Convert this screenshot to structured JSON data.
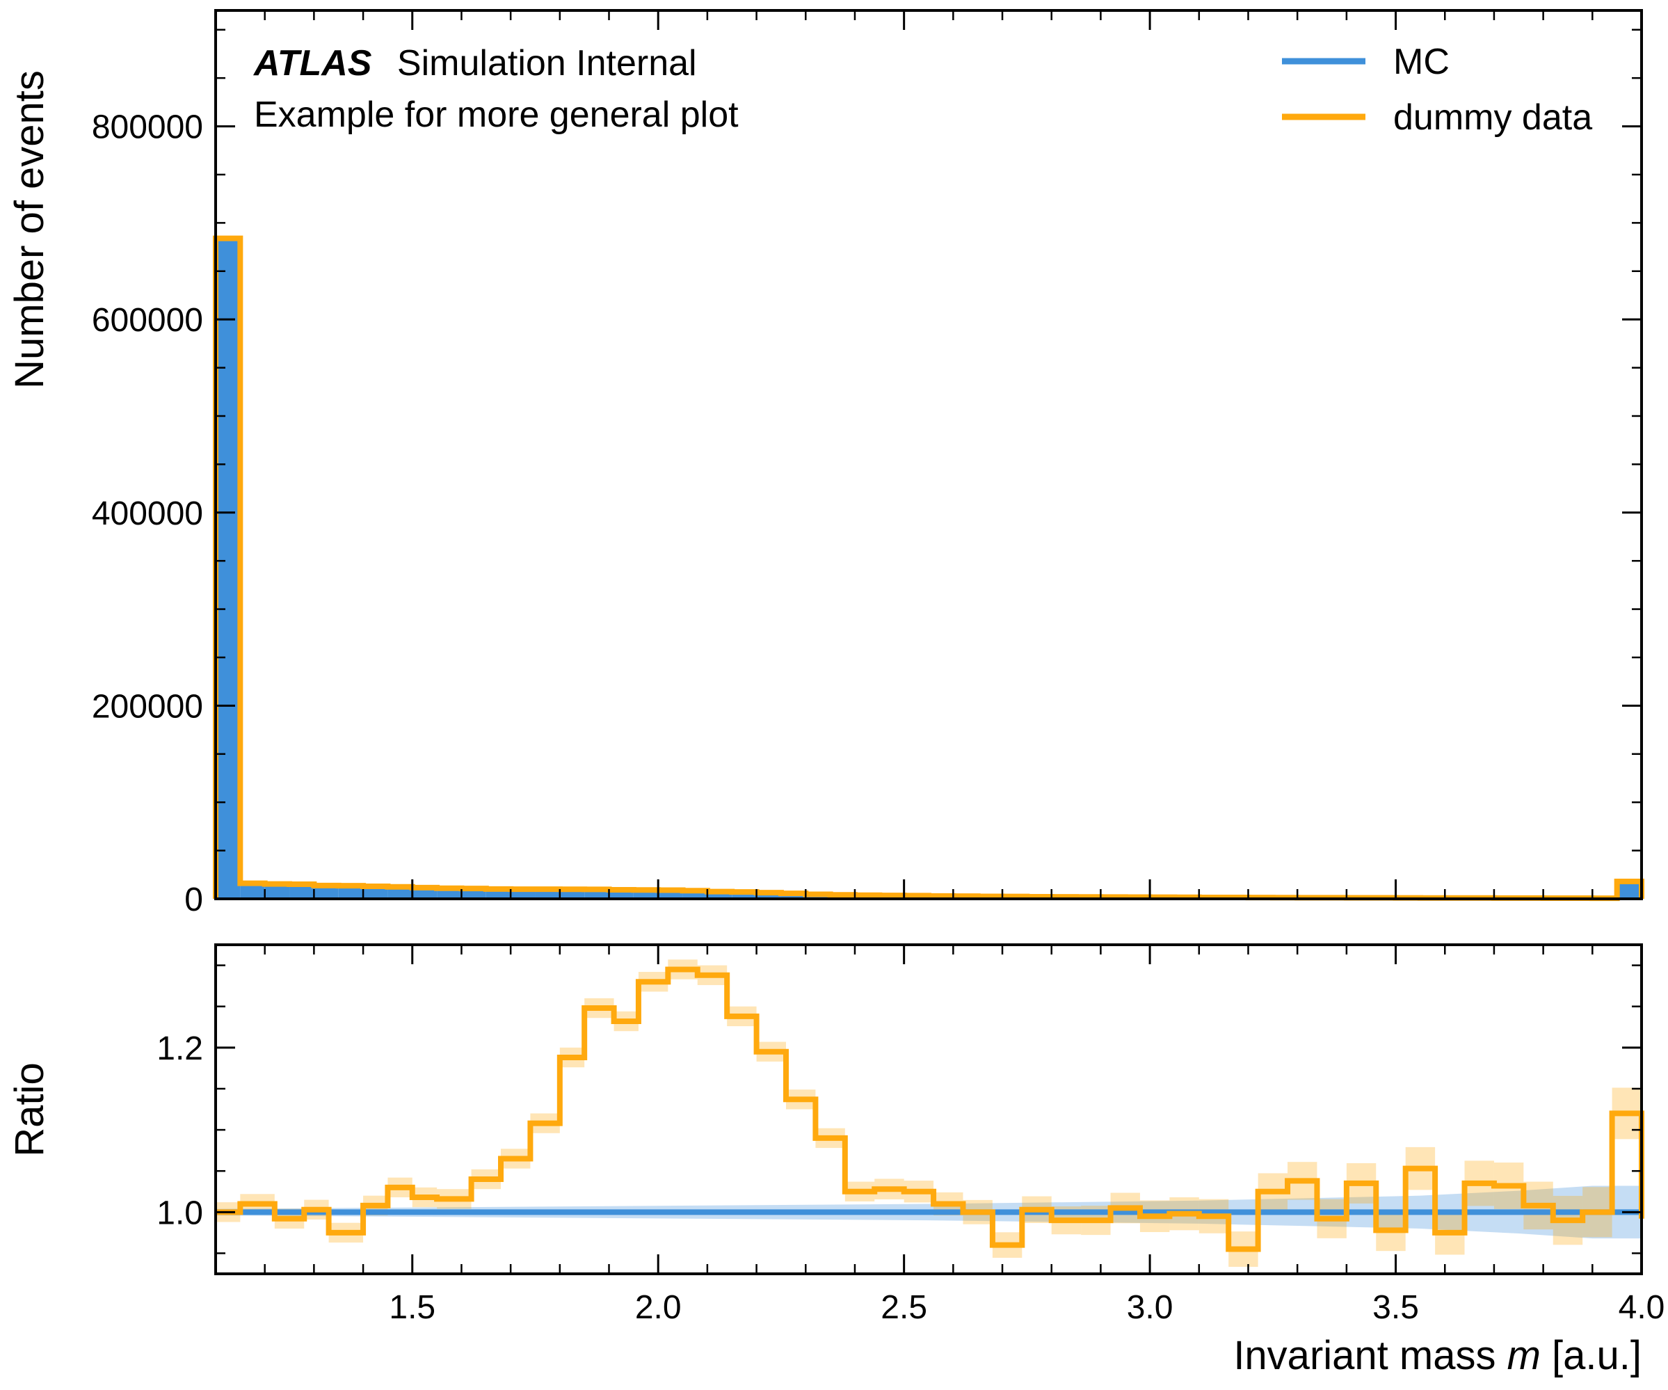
{
  "chart_data": [
    {
      "type": "histogram",
      "panel": "main",
      "ylabel": "Number of events",
      "xlim": [
        1.1,
        4.0
      ],
      "ylim": [
        0,
        920000
      ],
      "yticks": [
        0,
        200000,
        400000,
        600000,
        800000
      ],
      "ytick_labels": [
        "0",
        "200000",
        "400000",
        "600000",
        "800000"
      ],
      "annotation": {
        "experiment": "ATLAS",
        "status": "Simulation Internal",
        "subtitle": "Example for more general plot"
      },
      "legend": {
        "placement": "top-right",
        "entries": [
          {
            "label": "MC",
            "color": "#3f90da"
          },
          {
            "label": "dummy data",
            "color": "#ffa90e"
          }
        ]
      },
      "bin_width": 0.05,
      "bin_lows": [
        1.1,
        1.15,
        1.2,
        1.25,
        1.3,
        1.35,
        1.4,
        1.45,
        1.5,
        1.55,
        1.6,
        1.65,
        1.7,
        1.75,
        1.8,
        1.85,
        1.9,
        1.95,
        2.0,
        2.05,
        2.1,
        2.15,
        2.2,
        2.25,
        2.3,
        2.35,
        2.4,
        2.45,
        2.5,
        2.55,
        2.6,
        2.65,
        2.7,
        2.75,
        2.8,
        2.85,
        2.9,
        2.95,
        3.0,
        3.05,
        3.1,
        3.15,
        3.2,
        3.25,
        3.3,
        3.35,
        3.4,
        3.45,
        3.5,
        3.55,
        3.6,
        3.65,
        3.7,
        3.75,
        3.8,
        3.85,
        3.9,
        3.95
      ],
      "series": [
        {
          "name": "MC",
          "color": "#3f90da",
          "style": "filled",
          "values": [
            682000,
            16000,
            15500,
            15000,
            14200,
            13500,
            12800,
            12100,
            11500,
            10900,
            10300,
            9800,
            9300,
            8800,
            8300,
            7800,
            7400,
            7000,
            6600,
            6200,
            5800,
            5400,
            5000,
            4600,
            4300,
            4000,
            3700,
            3400,
            3200,
            3000,
            2800,
            2600,
            2400,
            2200,
            2100,
            2000,
            1900,
            1800,
            1700,
            1600,
            1500,
            1400,
            1300,
            1250,
            1200,
            1150,
            1100,
            1050,
            1000,
            950,
            900,
            860,
            820,
            780,
            740,
            700,
            660,
            16000
          ]
        },
        {
          "name": "dummy data",
          "color": "#ffa90e",
          "style": "step",
          "values": [
            684000,
            16100,
            15400,
            15100,
            13800,
            13600,
            13000,
            12400,
            11600,
            11000,
            10700,
            10200,
            10000,
            10000,
            9900,
            9800,
            9400,
            9200,
            9000,
            8500,
            7500,
            7100,
            6400,
            5700,
            4700,
            4100,
            3800,
            3500,
            3300,
            3000,
            2800,
            2500,
            2400,
            2200,
            2050,
            1950,
            1900,
            1800,
            1700,
            1600,
            1400,
            1400,
            1350,
            1300,
            1200,
            1180,
            1100,
            1080,
            1000,
            930,
            920,
            880,
            820,
            770,
            750,
            700,
            660,
            18000
          ]
        }
      ]
    },
    {
      "type": "line",
      "panel": "ratio",
      "xlabel": "Invariant mass m [a.u.]",
      "xlabel_parts": [
        "Invariant mass ",
        "m",
        " [a.u.]"
      ],
      "ylabel": "Ratio",
      "xlim": [
        1.1,
        4.0
      ],
      "ylim": [
        0.925,
        1.325
      ],
      "xticks": [
        1.5,
        2.0,
        2.5,
        3.0,
        3.5,
        4.0
      ],
      "xtick_labels": [
        "1.5",
        "2.0",
        "2.5",
        "3.0",
        "3.5",
        "4.0"
      ],
      "yticks": [
        1.0,
        1.2
      ],
      "ytick_labels": [
        "1.0",
        "1.2"
      ],
      "mc_band": {
        "color": "#3f90da",
        "edges": [
          1.1,
          1.85,
          2.55,
          3.1,
          3.55,
          3.75,
          3.9,
          4.0
        ],
        "halfwidth": [
          0.004,
          0.007,
          0.01,
          0.014,
          0.02,
          0.026,
          0.032,
          0.032
        ]
      },
      "series": [
        {
          "name": "dummy data",
          "color": "#ffa90e",
          "values": [
            1.0,
            1.01,
            0.992,
            1.003,
            0.975,
            1.008,
            1.03,
            1.018,
            1.016,
            1.04,
            1.065,
            1.108,
            1.188,
            1.248,
            1.232,
            1.28,
            1.295,
            1.288,
            1.238,
            1.195,
            1.137,
            1.09,
            1.025,
            1.028,
            1.025,
            1.01,
            1.0,
            0.96,
            1.003,
            0.99,
            0.99,
            1.005,
            0.995,
            0.998,
            0.995,
            0.955,
            1.025,
            1.038,
            0.992,
            1.035,
            0.978,
            1.053,
            0.975,
            1.035,
            1.032,
            1.008,
            0.99,
            1.0,
            1.12,
            0.992
          ],
          "bin_lows": [
            1.1,
            1.15,
            1.22,
            1.28,
            1.33,
            1.4,
            1.45,
            1.5,
            1.55,
            1.62,
            1.68,
            1.74,
            1.8,
            1.85,
            1.91,
            1.96,
            2.02,
            2.08,
            2.14,
            2.2,
            2.26,
            2.32,
            2.38,
            2.44,
            2.5,
            2.56,
            2.62,
            2.68,
            2.74,
            2.8,
            2.86,
            2.92,
            2.98,
            3.04,
            3.1,
            3.16,
            3.22,
            3.28,
            3.34,
            3.4,
            3.46,
            3.52,
            3.58,
            3.64,
            3.7,
            3.76,
            3.82,
            3.88,
            3.94,
            4.0
          ],
          "bin_highs": [
            1.15,
            1.22,
            1.28,
            1.33,
            1.4,
            1.45,
            1.5,
            1.55,
            1.62,
            1.68,
            1.74,
            1.8,
            1.85,
            1.91,
            1.96,
            2.02,
            2.08,
            2.14,
            2.2,
            2.26,
            2.32,
            2.38,
            2.44,
            2.5,
            2.56,
            2.62,
            2.68,
            2.74,
            2.8,
            2.86,
            2.92,
            2.98,
            3.04,
            3.1,
            3.16,
            3.22,
            3.28,
            3.34,
            3.4,
            3.46,
            3.52,
            3.58,
            3.64,
            3.7,
            3.76,
            3.82,
            3.88,
            3.94,
            4.0,
            4.0
          ]
        }
      ]
    }
  ]
}
